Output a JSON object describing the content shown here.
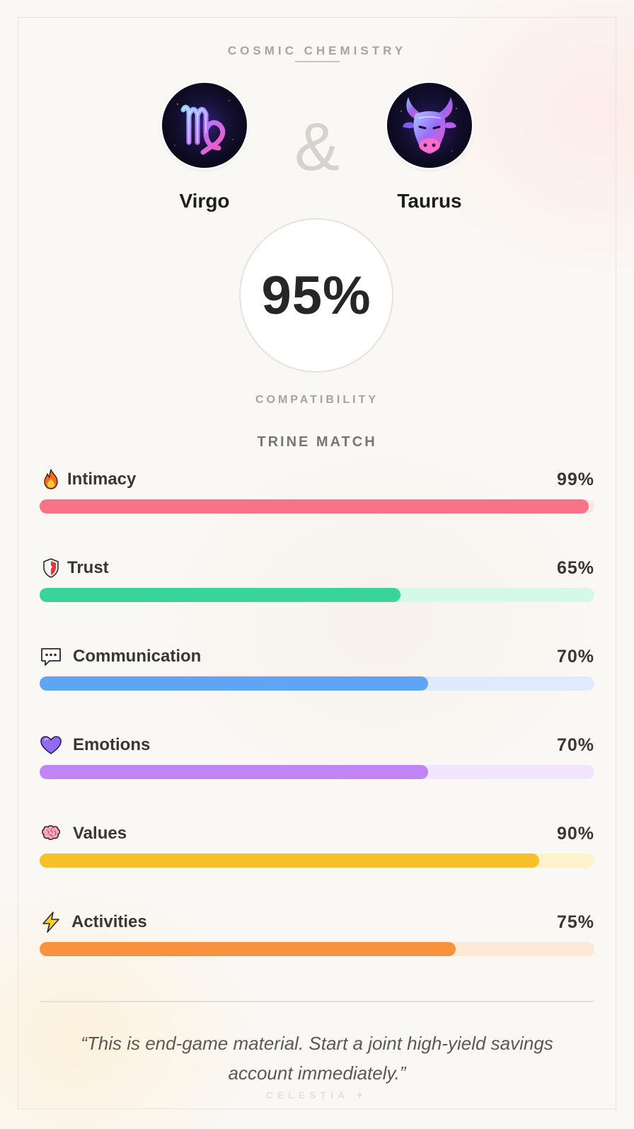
{
  "header": {
    "kicker": "COSMIC CHEMISTRY"
  },
  "pair": {
    "left": {
      "name": "Virgo",
      "icon": "virgo-zodiac-icon"
    },
    "separator": "&",
    "right": {
      "name": "Taurus",
      "icon": "taurus-bull-icon"
    }
  },
  "score": {
    "value": "95%",
    "label": "COMPATIBILITY",
    "match_type": "TRINE MATCH"
  },
  "metrics": [
    {
      "label": "Intimacy",
      "percent_text": "99%",
      "value": 99,
      "icon": "fire-icon",
      "fill_color": "#f87388",
      "track_color": "#fde6ea"
    },
    {
      "label": "Trust",
      "percent_text": "65%",
      "value": 65,
      "icon": "shield-icon",
      "fill_color": "#3ad49a",
      "track_color": "#d4f8ea"
    },
    {
      "label": "Communication",
      "percent_text": "70%",
      "value": 70,
      "icon": "speech-bubble-icon",
      "fill_color": "#5fa4f5",
      "track_color": "#dfeafd"
    },
    {
      "label": "Emotions",
      "percent_text": "70%",
      "value": 70,
      "icon": "purple-heart-icon",
      "fill_color": "#c084f5",
      "track_color": "#f1e6fd"
    },
    {
      "label": "Values",
      "percent_text": "90%",
      "value": 90,
      "icon": "brain-icon",
      "fill_color": "#f7c12c",
      "track_color": "#fdf2cc"
    },
    {
      "label": "Activities",
      "percent_text": "75%",
      "value": 75,
      "icon": "lightning-icon",
      "fill_color": "#f7923e",
      "track_color": "#fde9d6"
    }
  ],
  "quote": "“This is end-game material. Start a joint high-yield savings account immediately.”",
  "footer": {
    "brand": "CELESTIA ✦"
  }
}
